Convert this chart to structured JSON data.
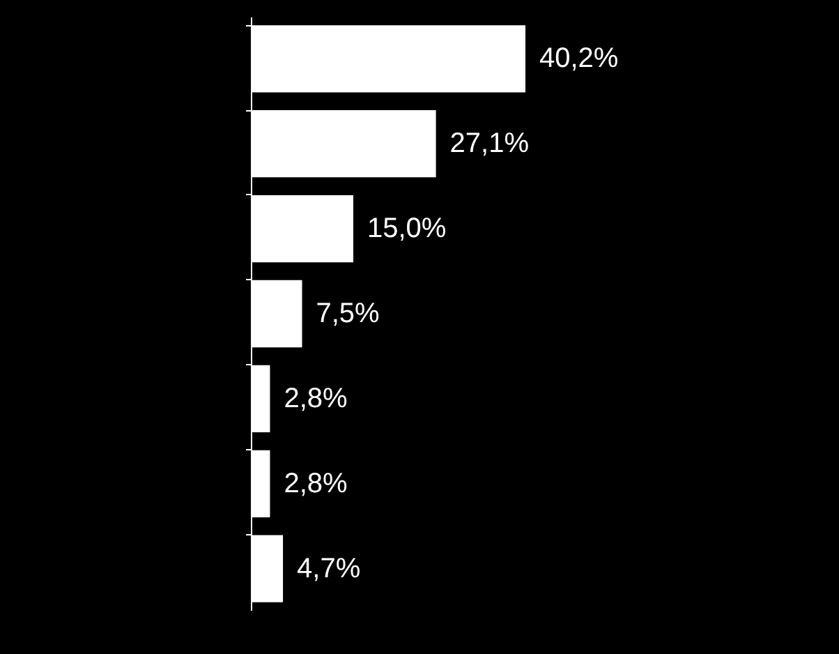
{
  "chart_data": {
    "type": "bar",
    "orientation": "horizontal",
    "categories": [
      null,
      null,
      null,
      null,
      null,
      null,
      null
    ],
    "values": [
      40.2,
      27.1,
      15.0,
      7.5,
      2.8,
      2.8,
      4.7
    ],
    "value_labels": [
      "40,2%",
      "27,1%",
      "15,0%",
      "7,5%",
      "2,8%",
      "2,8%",
      "4,7%"
    ],
    "color": "#ffffff"
  }
}
